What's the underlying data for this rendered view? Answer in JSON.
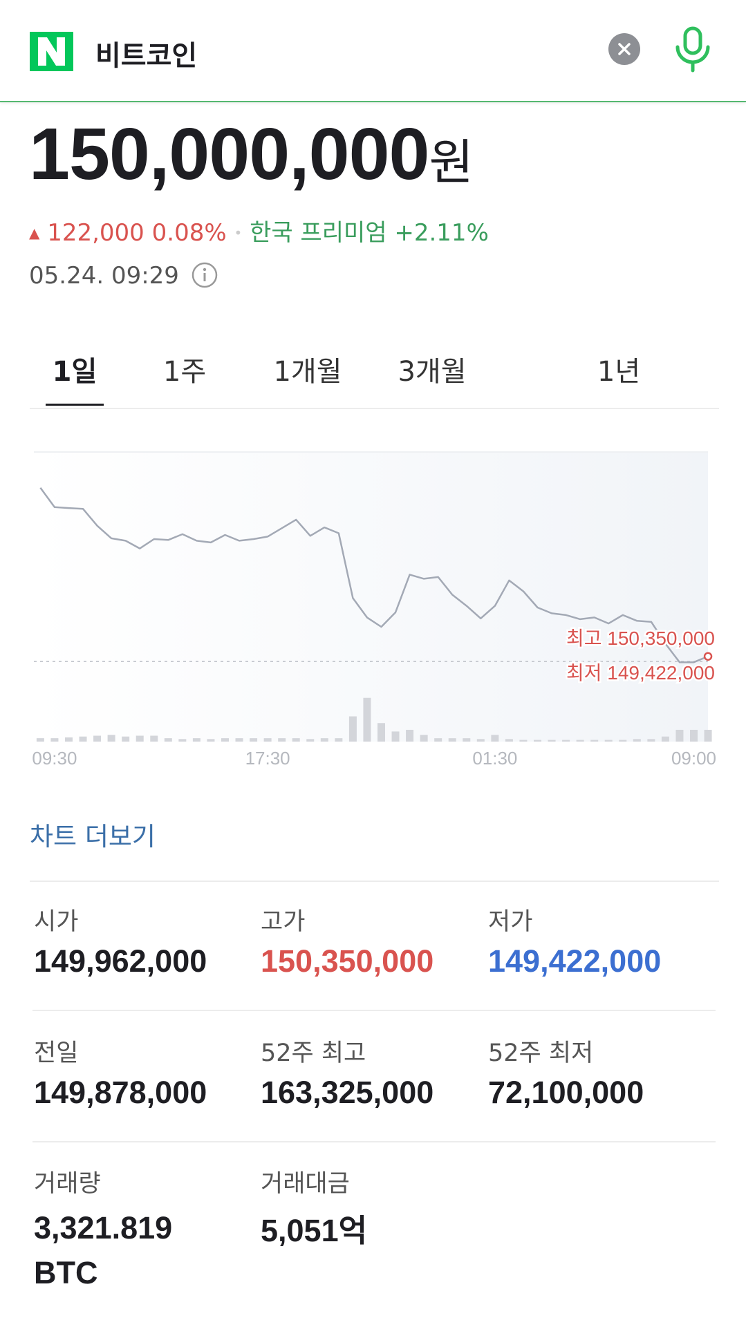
{
  "header": {
    "query": "비트코인"
  },
  "quote": {
    "price": "150,000,000",
    "unit": "원",
    "change": "122,000",
    "change_rate": "0.08%",
    "premium_label": "한국 프리미엄",
    "premium": "+2.11%",
    "timestamp": "05.24. 09:29"
  },
  "tabs": [
    "1일",
    "1주",
    "1개월",
    "3개월",
    "1년"
  ],
  "chart_data": {
    "type": "line",
    "series": [
      {
        "name": "price",
        "color": "#a3a9b5",
        "values": [
          150350000,
          150247000,
          150242000,
          150238000,
          150148000,
          150081000,
          150068000,
          150027000,
          150077000,
          150072000,
          150103000,
          150068000,
          150059000,
          150099000,
          150068000,
          150077000,
          150090000,
          150135000,
          150180000,
          150094000,
          150139000,
          150108000,
          149763000,
          149660000,
          149610000,
          149687000,
          149888000,
          149866000,
          149875000,
          149781000,
          149722000,
          149655000,
          149722000,
          149857000,
          149799000,
          149713000,
          149682000,
          149673000,
          149651000,
          149660000,
          149628000,
          149673000,
          149642000,
          149637000,
          149521000,
          149422000,
          149422000,
          149453000
        ]
      }
    ],
    "volume": {
      "color": "#d3d5da",
      "values": [
        4,
        4,
        5,
        6,
        7,
        8,
        6,
        7,
        7,
        4,
        3,
        4,
        3,
        4,
        4,
        4,
        4,
        4,
        4,
        3,
        4,
        4,
        30,
        52,
        22,
        12,
        14,
        8,
        4,
        4,
        4,
        3,
        8,
        3,
        2,
        2,
        2,
        2,
        2,
        2,
        2,
        2,
        3,
        3,
        6,
        14,
        14,
        14
      ],
      "ylim": [
        0,
        60
      ]
    },
    "ylim": [
      149000000,
      150540000
    ],
    "xlim": [
      0,
      47
    ],
    "xticks": [
      {
        "value": 1,
        "label": "09:30"
      },
      {
        "value": 16,
        "label": "17:30"
      },
      {
        "value": 32,
        "label": "01:30"
      },
      {
        "value": 46,
        "label": "09:00"
      }
    ],
    "annotations": [
      "최고 150,350,000",
      "최저 149,422,000"
    ]
  },
  "more_link": "차트 더보기",
  "stats": [
    {
      "label": "시가",
      "value": "149,962,000"
    },
    {
      "label": "고가",
      "value": "150,350,000"
    },
    {
      "label": "저가",
      "value": "149,422,000"
    },
    {
      "label": "전일",
      "value": "149,878,000"
    },
    {
      "label": "52주 최고",
      "value": "163,325,000"
    },
    {
      "label": "52주 최저",
      "value": "72,100,000"
    },
    {
      "label": "거래량",
      "value": "3,321.819 BTC"
    },
    {
      "label": "거래대금",
      "value": "5,051억"
    }
  ]
}
